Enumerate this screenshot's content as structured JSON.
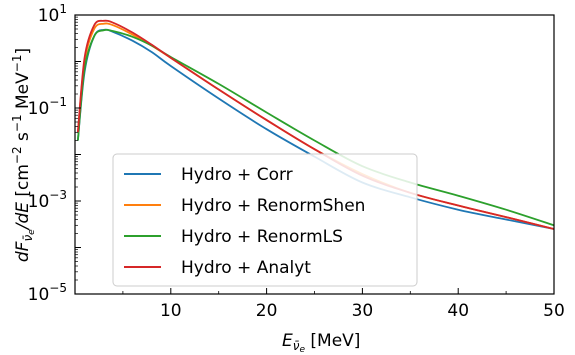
{
  "chart_data": {
    "type": "line",
    "xlabel": "E_{ν̄e} [MeV]",
    "ylabel": "dF_{ν̄e}/dE [cm⁻² s⁻¹ MeV⁻¹]",
    "xlim": [
      0,
      50
    ],
    "ylim_log10": [
      -5,
      1
    ],
    "yscale": "log",
    "grid": false,
    "legend_position": "lower-left",
    "x_ticks": [
      10,
      20,
      30,
      40,
      50
    ],
    "y_ticks": [
      {
        "exp": -5,
        "label_base": "10",
        "label_exp": "−5"
      },
      {
        "exp": -3,
        "label_base": "10",
        "label_exp": "−3"
      },
      {
        "exp": -1,
        "label_base": "10",
        "label_exp": "−1"
      },
      {
        "exp": 1,
        "label_base": "10",
        "label_exp": "1"
      }
    ],
    "series": [
      {
        "name": "Hydro + Corr",
        "color": "#1f77b4",
        "points": [
          [
            0.3,
            0.02
          ],
          [
            1,
            0.6
          ],
          [
            2,
            3.5
          ],
          [
            3,
            4.8
          ],
          [
            4,
            4.3
          ],
          [
            6,
            2.8
          ],
          [
            8,
            1.6
          ],
          [
            10,
            0.8
          ],
          [
            15,
            0.16
          ],
          [
            20,
            0.035
          ],
          [
            25,
            0.009
          ],
          [
            30,
            0.0025
          ],
          [
            35,
            0.0012
          ],
          [
            40,
            0.00065
          ],
          [
            45,
            0.0004
          ],
          [
            50,
            0.00025
          ]
        ]
      },
      {
        "name": "Hydro + RenormShen",
        "color": "#ff7f0e",
        "points": [
          [
            0.3,
            0.03
          ],
          [
            1,
            1.0
          ],
          [
            2,
            5.0
          ],
          [
            3,
            6.5
          ],
          [
            4,
            6.0
          ],
          [
            6,
            3.8
          ],
          [
            8,
            2.2
          ],
          [
            10,
            1.2
          ],
          [
            15,
            0.25
          ],
          [
            20,
            0.055
          ],
          [
            25,
            0.013
          ],
          [
            30,
            0.0038
          ],
          [
            35,
            0.0015
          ],
          [
            40,
            0.0008
          ],
          [
            45,
            0.00045
          ],
          [
            50,
            0.00025
          ]
        ]
      },
      {
        "name": "Hydro + RenormLS",
        "color": "#2ca02c",
        "points": [
          [
            0.3,
            0.02
          ],
          [
            1,
            0.7
          ],
          [
            2,
            3.5
          ],
          [
            3,
            4.7
          ],
          [
            4,
            4.5
          ],
          [
            6,
            3.4
          ],
          [
            8,
            2.2
          ],
          [
            10,
            1.25
          ],
          [
            15,
            0.33
          ],
          [
            20,
            0.08
          ],
          [
            25,
            0.02
          ],
          [
            30,
            0.0056
          ],
          [
            35,
            0.0025
          ],
          [
            40,
            0.0013
          ],
          [
            45,
            0.00065
          ],
          [
            50,
            0.0003
          ]
        ]
      },
      {
        "name": "Hydro + Analyt",
        "color": "#d62728",
        "points": [
          [
            0.3,
            0.03
          ],
          [
            1,
            1.2
          ],
          [
            2,
            6.0
          ],
          [
            3,
            7.5
          ],
          [
            4,
            6.8
          ],
          [
            6,
            4.2
          ],
          [
            8,
            2.3
          ],
          [
            10,
            1.2
          ],
          [
            15,
            0.25
          ],
          [
            20,
            0.055
          ],
          [
            25,
            0.013
          ],
          [
            30,
            0.0035
          ],
          [
            35,
            0.0015
          ],
          [
            40,
            0.0008
          ],
          [
            45,
            0.00045
          ],
          [
            50,
            0.00025
          ]
        ]
      }
    ]
  }
}
